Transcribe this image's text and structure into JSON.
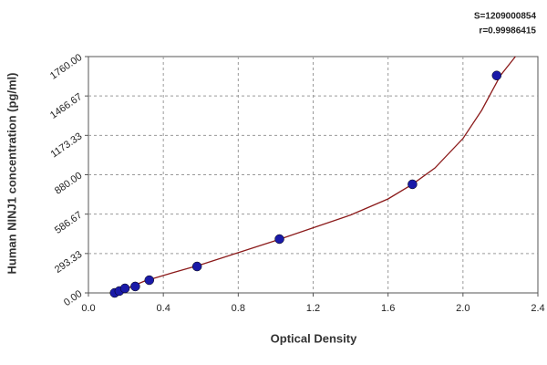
{
  "chart_data": {
    "type": "scatter",
    "annotations": [
      "S=1209000854",
      "r=0.99986415"
    ],
    "xlabel": "Optical Density",
    "ylabel": "Human NINJ1 concentration (pg/ml)",
    "xlim": [
      0,
      2.4
    ],
    "xticks": [
      {
        "value": 0,
        "label": "0.0"
      },
      0.4,
      0.8,
      1.2,
      1.6,
      {
        "value": 2,
        "label": "2.0"
      },
      2.4
    ],
    "ylim": [
      0,
      1760
    ],
    "yticks": [
      {
        "value": 0,
        "label": "0.00"
      },
      {
        "value": 293.33,
        "label": "293.33"
      },
      {
        "value": 586.67,
        "label": "586.67"
      },
      {
        "value": 880,
        "label": "880.00"
      },
      {
        "value": 1173.33,
        "label": "1173.33"
      },
      {
        "value": 1466.67,
        "label": "1466.67"
      },
      {
        "value": 1760,
        "label": "1760.00"
      }
    ],
    "grid": true,
    "points": {
      "color": "#1a1aa8",
      "x": [
        0.14,
        0.165,
        0.195,
        0.25,
        0.325,
        0.58,
        1.02,
        1.73,
        2.18
      ],
      "values": [
        0,
        14,
        34,
        48,
        95,
        197,
        401,
        809,
        1619
      ]
    },
    "curve": {
      "color": "#8b1a1a",
      "x": [
        0.13,
        0.2,
        0.3,
        0.45,
        0.6,
        0.8,
        1.0,
        1.2,
        1.4,
        1.6,
        1.73,
        1.85,
        2.0,
        2.1,
        2.2,
        2.28
      ],
      "values": [
        0,
        30,
        88,
        150,
        210,
        300,
        390,
        485,
        580,
        700,
        809,
        930,
        1150,
        1360,
        1619,
        1760
      ]
    }
  }
}
